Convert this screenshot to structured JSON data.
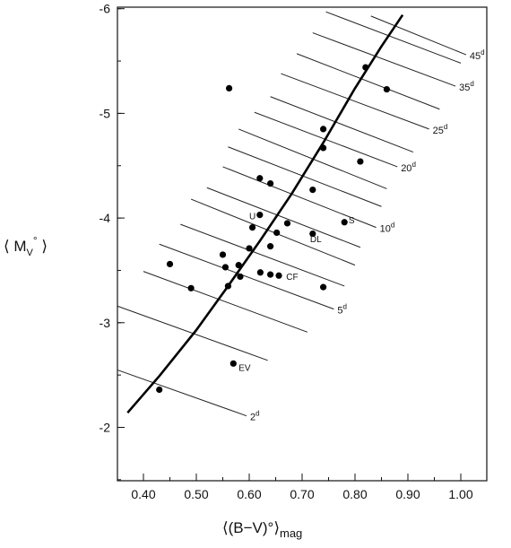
{
  "chart_data": {
    "type": "scatter",
    "xlabel": "⟨(B−V)°⟩",
    "xlabel_unit": "mag",
    "ylabel": "⟨ M",
    "ylabel_sub": "V",
    "ylabel_sup": "°",
    "ylabel_end": " ⟩",
    "xlim": [
      0.35,
      1.05
    ],
    "ylim": [
      -1.5,
      -6.0
    ],
    "y_inverted": true,
    "xticks": [
      0.4,
      0.5,
      0.6,
      0.7,
      0.8,
      0.9,
      1.0
    ],
    "xtick_labels": [
      "0.40",
      "0.50",
      "0.60",
      "0.70",
      "0.80",
      "0.90",
      "1.00"
    ],
    "yticks": [
      -2,
      -3,
      -4,
      -5,
      -6
    ],
    "ytick_labels": [
      "-2",
      "-3",
      "-4",
      "-5",
      "-6"
    ],
    "grid": false,
    "series": [
      {
        "kind": "points",
        "x": [
          0.43,
          0.45,
          0.49,
          0.55,
          0.555,
          0.56,
          0.562,
          0.57,
          0.58,
          0.583,
          0.6,
          0.606,
          0.62,
          0.62,
          0.621,
          0.64,
          0.64,
          0.64,
          0.652,
          0.656,
          0.672,
          0.72,
          0.72,
          0.74,
          0.74,
          0.74,
          0.78,
          0.81,
          0.82,
          0.86
        ],
        "y": [
          -2.36,
          -3.56,
          -3.33,
          -3.65,
          -3.53,
          -3.35,
          -5.24,
          -2.61,
          -3.55,
          -3.44,
          -3.71,
          -3.91,
          -4.38,
          -4.03,
          -3.48,
          -4.33,
          -3.73,
          -3.46,
          -3.86,
          -3.45,
          -3.95,
          -3.85,
          -4.27,
          -4.85,
          -4.67,
          -3.34,
          -3.96,
          -4.54,
          -5.44,
          -5.23
        ]
      },
      {
        "kind": "curve",
        "x": [
          0.37,
          0.43,
          0.5,
          0.56,
          0.62,
          0.68,
          0.74,
          0.8,
          0.85,
          0.89
        ],
        "y": [
          -2.14,
          -2.49,
          -2.93,
          -3.35,
          -3.78,
          -4.23,
          -4.72,
          -5.24,
          -5.64,
          -5.94
        ]
      }
    ],
    "point_labels": [
      {
        "text": "EV",
        "x": 0.58,
        "y": -2.54
      },
      {
        "text": "CF",
        "x": 0.67,
        "y": -3.41
      },
      {
        "text": "U",
        "x": 0.6,
        "y": -3.99
      },
      {
        "text": "DL",
        "x": 0.715,
        "y": -3.77
      },
      {
        "text": "S",
        "x": 0.788,
        "y": -3.95
      }
    ],
    "period_lines": [
      {
        "label": "2",
        "x1": 0.35,
        "y1": -2.55,
        "x2": 0.595,
        "y2": -2.11
      },
      {
        "label": "",
        "x1": 0.35,
        "y1": -3.16,
        "x2": 0.635,
        "y2": -2.64
      },
      {
        "label": "",
        "x1": 0.4,
        "y1": -3.49,
        "x2": 0.71,
        "y2": -2.91
      },
      {
        "label": "5",
        "x1": 0.43,
        "y1": -3.75,
        "x2": 0.76,
        "y2": -3.13
      },
      {
        "label": "",
        "x1": 0.47,
        "y1": -3.94,
        "x2": 0.78,
        "y2": -3.35
      },
      {
        "label": "",
        "x1": 0.49,
        "y1": -4.18,
        "x2": 0.8,
        "y2": -3.55
      },
      {
        "label": "",
        "x1": 0.52,
        "y1": -4.29,
        "x2": 0.81,
        "y2": -3.72
      },
      {
        "label": "10",
        "x1": 0.55,
        "y1": -4.49,
        "x2": 0.84,
        "y2": -3.91
      },
      {
        "label": "",
        "x1": 0.56,
        "y1": -4.68,
        "x2": 0.85,
        "y2": -4.11
      },
      {
        "label": "",
        "x1": 0.58,
        "y1": -4.85,
        "x2": 0.86,
        "y2": -4.28
      },
      {
        "label": "20",
        "x1": 0.61,
        "y1": -5.01,
        "x2": 0.88,
        "y2": -4.49
      },
      {
        "label": "",
        "x1": 0.64,
        "y1": -5.16,
        "x2": 0.91,
        "y2": -4.63
      },
      {
        "label": "25",
        "x1": 0.66,
        "y1": -5.38,
        "x2": 0.94,
        "y2": -4.85
      },
      {
        "label": "",
        "x1": 0.69,
        "y1": -5.57,
        "x2": 0.96,
        "y2": -5.04
      },
      {
        "label": "35",
        "x1": 0.72,
        "y1": -5.77,
        "x2": 0.99,
        "y2": -5.26
      },
      {
        "label": "",
        "x1": 0.745,
        "y1": -5.97,
        "x2": 1.0,
        "y2": -5.48
      },
      {
        "label": "45",
        "x1": 0.83,
        "y1": -5.93,
        "x2": 1.01,
        "y2": -5.56
      }
    ],
    "period_label_sup": "d"
  }
}
